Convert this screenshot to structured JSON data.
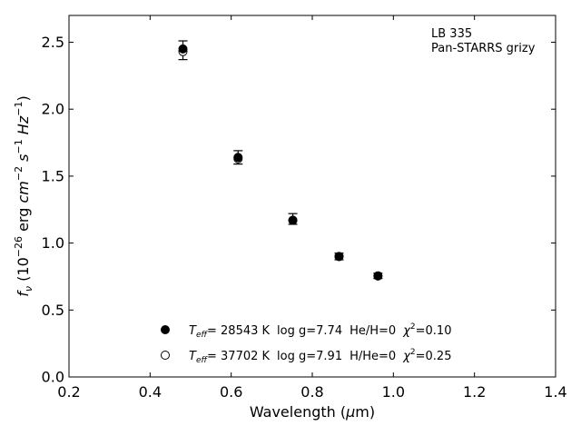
{
  "chart_data": {
    "type": "scatter",
    "title": "",
    "xlabel": "Wavelength (μm)",
    "ylabel": "f_ν (10^−26 erg cm^−2 s^−1 Hz^−1)",
    "xlim": [
      0.2,
      1.4
    ],
    "ylim": [
      0.0,
      2.7
    ],
    "xticks": [
      0.2,
      0.4,
      0.6,
      0.8,
      1.0,
      1.2,
      1.4
    ],
    "yticks": [
      0.0,
      0.5,
      1.0,
      1.5,
      2.0,
      2.5
    ],
    "xtick_labels": [
      "0.2",
      "0.4",
      "0.6",
      "0.8",
      "1.0",
      "1.2",
      "1.4"
    ],
    "ytick_labels": [
      "0.0",
      "0.5",
      "1.0",
      "1.5",
      "2.0",
      "2.5"
    ],
    "grid": false,
    "annotation": {
      "line1": "LB 335",
      "line2": "Pan-STARRS grizy"
    },
    "observed": {
      "x": [
        0.481,
        0.617,
        0.752,
        0.866,
        0.962
      ],
      "y": [
        2.44,
        1.64,
        1.18,
        0.9,
        0.755
      ],
      "yerr": [
        0.07,
        0.05,
        0.04,
        0.025,
        0.02
      ]
    },
    "series": [
      {
        "name": "T_eff= 28543 K  log g=7.74  He/H=0  χ²=0.10",
        "marker": "filled-circle",
        "x": [
          0.481,
          0.617,
          0.752,
          0.866,
          0.962
        ],
        "y": [
          2.45,
          1.64,
          1.17,
          0.9,
          0.755
        ]
      },
      {
        "name": "T_eff= 37702 K  log g=7.91  H/He=0  χ²=0.25",
        "marker": "open-circle",
        "x": [
          0.481,
          0.617,
          0.752,
          0.866,
          0.962
        ],
        "y": [
          2.43,
          1.63,
          1.17,
          0.9,
          0.755
        ]
      }
    ],
    "legend": {
      "placement": "bottom-center",
      "entries": [
        {
          "teff_label": "T",
          "teff_sub": "eff",
          "teff_value": "= 28543 K",
          "logg": "log g=7.74",
          "comp": "He/H=0",
          "chi_label": "χ",
          "chi_sup": "2",
          "chi_value": "=0.10"
        },
        {
          "teff_label": "T",
          "teff_sub": "eff",
          "teff_value": "= 37702 K",
          "logg": "log g=7.91",
          "comp": "H/He=0",
          "chi_label": "χ",
          "chi_sup": "2",
          "chi_value": "=0.25"
        }
      ]
    },
    "colors": {
      "marker": "#000000",
      "background": "#ffffff"
    }
  }
}
